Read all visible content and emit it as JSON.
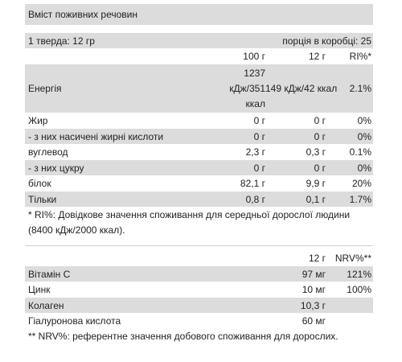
{
  "title": "Вміст поживних речовин",
  "serving": {
    "label": "1 тверда: 12 гр",
    "per_box": "порція в коробці: 25"
  },
  "nutrition": {
    "headers": [
      "",
      "100 г",
      "12 г",
      "RI%*"
    ],
    "energy": {
      "name": "Енергія",
      "per100_line1": "1237",
      "per100_line2": "кДж/351",
      "per100_line3": "ккал",
      "per12": "149 кДж/42 ккал",
      "ri": "2.1%"
    },
    "rows": [
      {
        "name": "Жир",
        "per100": "0 г",
        "per12": "0 г",
        "ri": "0%"
      },
      {
        "name": "- з них насичені жирні кислоти",
        "per100": "0 г",
        "per12": "0 г",
        "ri": "0%"
      },
      {
        "name": "вуглевод",
        "per100": "2,3 г",
        "per12": "0,3 г",
        "ri": "0.1%"
      },
      {
        "name": "- з них цукру",
        "per100": "0 г",
        "per12": "0 г",
        "ri": "0%"
      },
      {
        "name": "білок",
        "per100": "82,1 г",
        "per12": "9,9 г",
        "ri": "20%"
      },
      {
        "name": "Тільки",
        "per100": "0,8 г",
        "per12": "0,1 г",
        "ri": "1.7%"
      }
    ],
    "footnote": "* RI%: Довідкове значення споживання для середньої дорослої людини (8400 кДж/2000 ккал)."
  },
  "vitamins": {
    "headers": [
      "",
      "12 г",
      "NRV%**"
    ],
    "rows": [
      {
        "name": "Вітамін С",
        "amount": "97 мг",
        "nrv": "121%"
      },
      {
        "name": "Цинк",
        "amount": "10 мг",
        "nrv": "100%"
      },
      {
        "name": "Колаген",
        "amount": "10,3 г",
        "nrv": ""
      },
      {
        "name": "Гіалуронова кислота",
        "amount": "60 мг",
        "nrv": ""
      }
    ],
    "footnote": "** NRV%: референтне значення добового споживання для дорослих."
  }
}
